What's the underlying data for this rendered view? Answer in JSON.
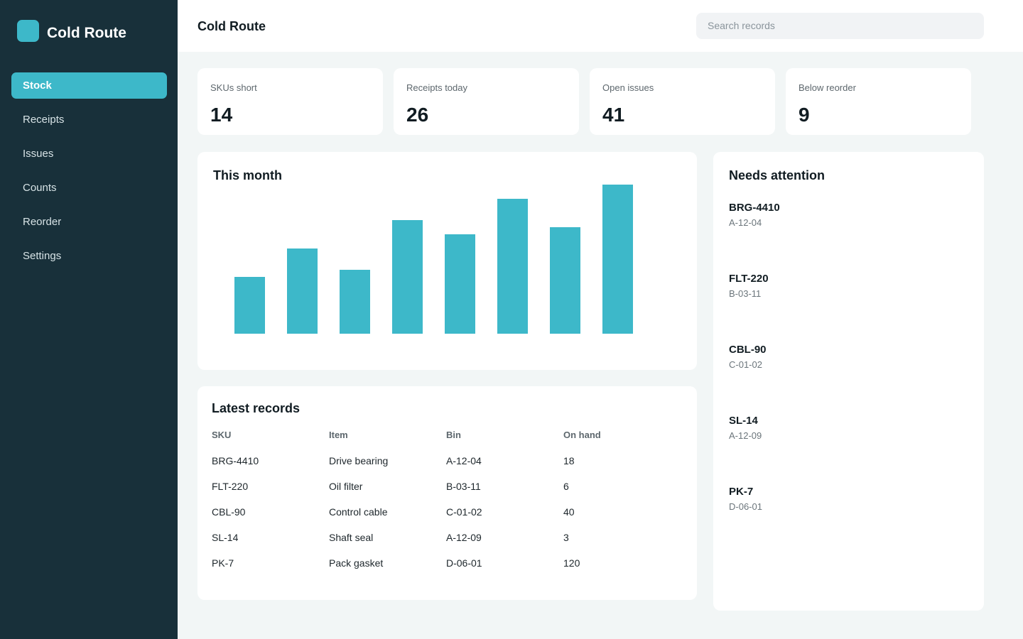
{
  "sidebar": {
    "brand": "Cold Route",
    "nav": [
      "Stock",
      "Receipts",
      "Issues",
      "Counts",
      "Reorder",
      "Settings"
    ],
    "active": 0
  },
  "header": {
    "title": "Cold Route",
    "search_placeholder": "Search records"
  },
  "kpis": [
    {
      "label": "SKUs short",
      "value": 14
    },
    {
      "label": "Receipts today",
      "value": 26
    },
    {
      "label": "Open issues",
      "value": 41
    },
    {
      "label": "Below reorder",
      "value": 9
    }
  ],
  "chart_data": {
    "type": "bar",
    "title": "This month",
    "values": [
      80,
      120,
      90,
      160,
      140,
      190,
      150,
      210
    ],
    "color": "#3db8c9"
  },
  "records": {
    "title": "Latest records",
    "columns": [
      "SKU",
      "Item",
      "Bin",
      "On hand"
    ],
    "rows": [
      [
        "BRG-4410",
        "Drive bearing",
        "A-12-04",
        18
      ],
      [
        "FLT-220",
        "Oil filter",
        "B-03-11",
        6
      ],
      [
        "CBL-90",
        "Control cable",
        "C-01-02",
        40
      ],
      [
        "SL-14",
        "Shaft seal",
        "A-12-09",
        3
      ],
      [
        "PK-7",
        "Pack gasket",
        "D-06-01",
        120
      ]
    ]
  },
  "attention": {
    "title": "Needs attention",
    "items": [
      {
        "sku": "BRG-4410",
        "bin": "A-12-04"
      },
      {
        "sku": "FLT-220",
        "bin": "B-03-11"
      },
      {
        "sku": "CBL-90",
        "bin": "C-01-02"
      },
      {
        "sku": "SL-14",
        "bin": "A-12-09"
      },
      {
        "sku": "PK-7",
        "bin": "D-06-01"
      }
    ]
  }
}
